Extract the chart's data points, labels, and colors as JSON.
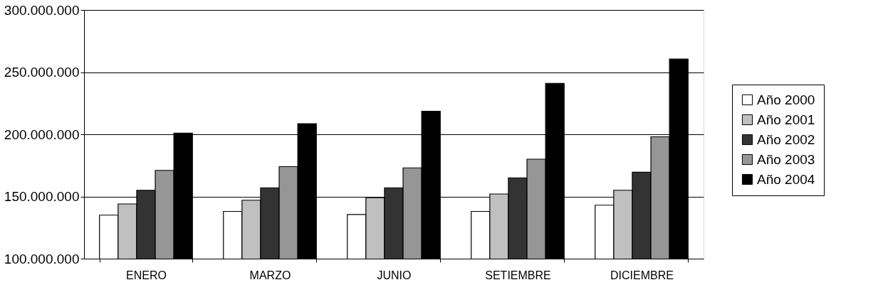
{
  "chart_data": {
    "type": "bar",
    "categories": [
      "ENERO",
      "MARZO",
      "JUNIO",
      "SETIEMBRE",
      "DICIEMBRE"
    ],
    "series": [
      {
        "name": "Año 2000",
        "color": "#ffffff",
        "values": [
          135000000,
          138000000,
          135500000,
          138000000,
          143000000
        ]
      },
      {
        "name": "Año 2001",
        "color": "#c0c0c0",
        "values": [
          144000000,
          147000000,
          149000000,
          152000000,
          155000000
        ]
      },
      {
        "name": "Año 2002",
        "color": "#333333",
        "values": [
          155000000,
          157000000,
          157000000,
          165000000,
          169500000
        ]
      },
      {
        "name": "Año 2003",
        "color": "#969696",
        "values": [
          171000000,
          174000000,
          173000000,
          180000000,
          198000000
        ]
      },
      {
        "name": "Año 2004",
        "color": "#000000",
        "values": [
          201000000,
          208500000,
          218500000,
          241000000,
          260500000
        ]
      }
    ],
    "ylim": [
      100000000,
      300000000
    ],
    "yticks": [
      {
        "value": 100000000,
        "label": "100.000.000"
      },
      {
        "value": 150000000,
        "label": "150.000.000"
      },
      {
        "value": 200000000,
        "label": "200.000.000"
      },
      {
        "value": 250000000,
        "label": "250.000.000"
      },
      {
        "value": 300000000,
        "label": "300.000.000"
      }
    ],
    "grid": "y",
    "legend": "right"
  }
}
